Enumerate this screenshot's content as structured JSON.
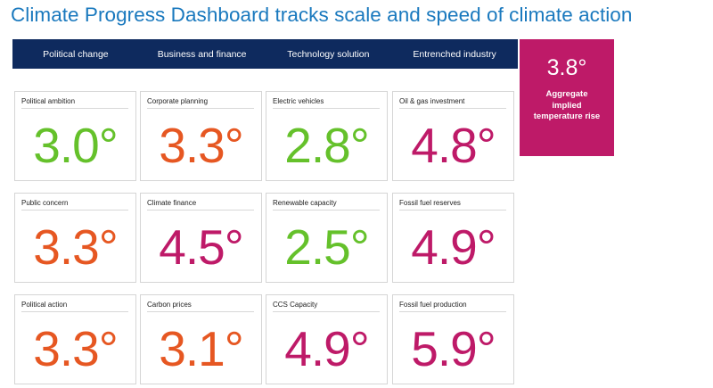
{
  "title": "Climate Progress Dashboard tracks scale and speed of climate action",
  "columns": [
    "Political change",
    "Business and finance",
    "Technology solution",
    "Entrenched industry"
  ],
  "aggregate": {
    "value": "3.8°",
    "label": "Aggregate implied temperature rise",
    "color": "#be1a68"
  },
  "colors": {
    "green": "#65c12b",
    "orange": "#e65722",
    "magenta": "#be1a68",
    "header": "#0e2a5e",
    "title": "#1a79be"
  },
  "cards": [
    {
      "label": "Political ambition",
      "value": "3.0°",
      "color": "#65c12b"
    },
    {
      "label": "Corporate planning",
      "value": "3.3°",
      "color": "#e65722"
    },
    {
      "label": "Electric vehicles",
      "value": "2.8°",
      "color": "#65c12b"
    },
    {
      "label": "Oil & gas investment",
      "value": "4.8°",
      "color": "#be1a68"
    },
    {
      "label": "Public concern",
      "value": "3.3°",
      "color": "#e65722"
    },
    {
      "label": "Climate finance",
      "value": "4.5°",
      "color": "#be1a68"
    },
    {
      "label": "Renewable capacity",
      "value": "2.5°",
      "color": "#65c12b"
    },
    {
      "label": "Fossil fuel reserves",
      "value": "4.9°",
      "color": "#be1a68"
    },
    {
      "label": "Political action",
      "value": "3.3°",
      "color": "#e65722"
    },
    {
      "label": "Carbon prices",
      "value": "3.1°",
      "color": "#e65722"
    },
    {
      "label": "CCS Capacity",
      "value": "4.9°",
      "color": "#be1a68"
    },
    {
      "label": "Fossil fuel production",
      "value": "5.9°",
      "color": "#be1a68"
    }
  ]
}
